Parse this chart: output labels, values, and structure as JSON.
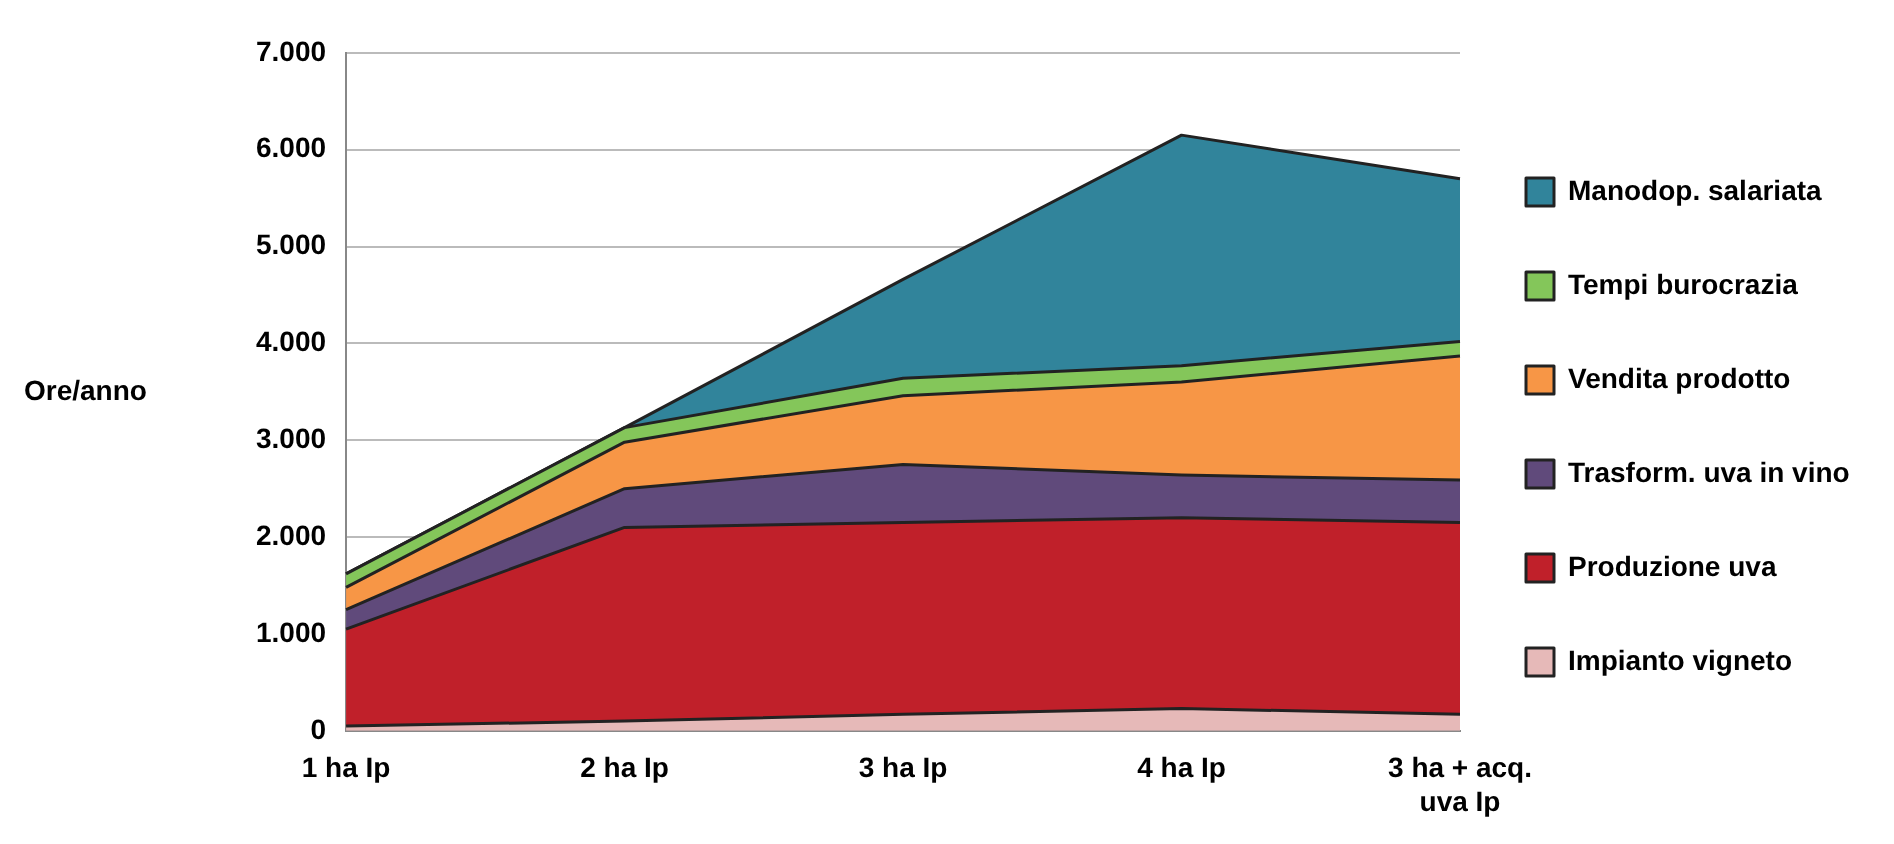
{
  "chart_data": {
    "type": "area",
    "stacked": true,
    "ylabel": "Ore/anno",
    "categories": [
      "1 ha Ip",
      "2 ha Ip",
      "3 ha Ip",
      "4 ha Ip",
      "3 ha + acq. uva Ip"
    ],
    "ylim": [
      0,
      7000
    ],
    "yticks": [
      {
        "value": 0,
        "label": "0"
      },
      {
        "value": 1000,
        "label": "1.000"
      },
      {
        "value": 2000,
        "label": "2.000"
      },
      {
        "value": 3000,
        "label": "3.000"
      },
      {
        "value": 4000,
        "label": "4.000"
      },
      {
        "value": 5000,
        "label": "5.000"
      },
      {
        "value": 6000,
        "label": "6.000"
      },
      {
        "value": 7000,
        "label": "7.000"
      }
    ],
    "grid": "y",
    "legend": "right",
    "series": [
      {
        "name": "Impianto vigneto",
        "color": "#e6b9b8",
        "values": [
          50,
          100,
          170,
          230,
          170
        ]
      },
      {
        "name": "Produzione uva",
        "color": "#c0202a",
        "values": [
          1000,
          2000,
          1980,
          1970,
          1980
        ]
      },
      {
        "name": "Trasform. uva in vino",
        "color": "#604a7b",
        "values": [
          200,
          400,
          600,
          440,
          440
        ]
      },
      {
        "name": "Vendita prodotto",
        "color": "#f79646",
        "values": [
          230,
          480,
          710,
          960,
          1280
        ]
      },
      {
        "name": "Tempi burocrazia",
        "color": "#84c65a",
        "values": [
          140,
          150,
          180,
          170,
          150
        ]
      },
      {
        "name": "Manodop. salariata",
        "color": "#31849b",
        "values": [
          0,
          0,
          1020,
          2380,
          1680
        ]
      }
    ]
  }
}
